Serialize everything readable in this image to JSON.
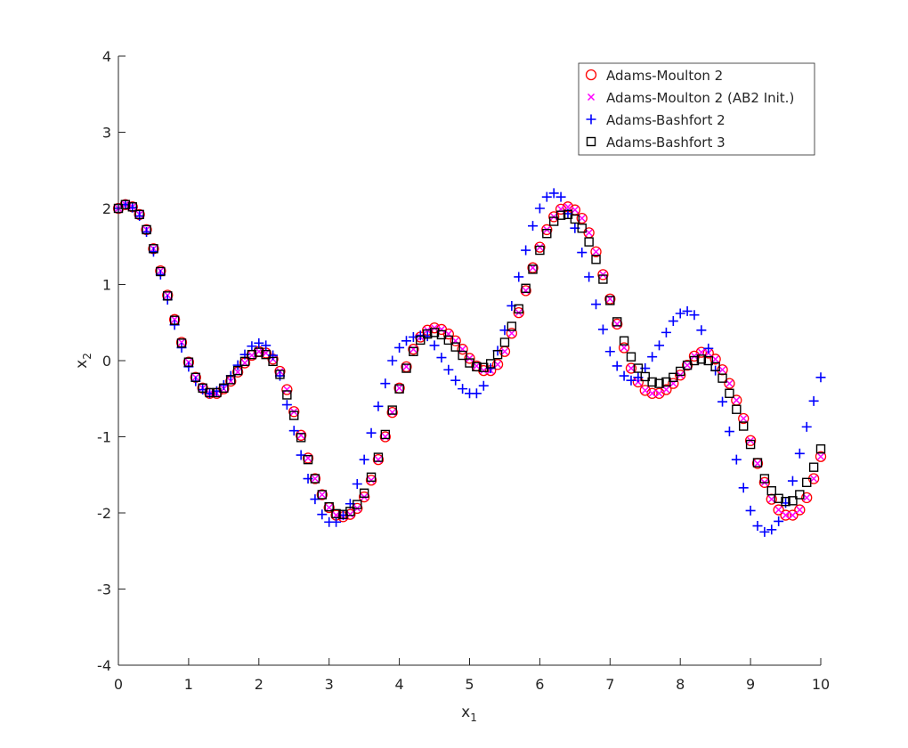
{
  "chart_data": {
    "type": "scatter",
    "title": "",
    "xlabel": "x",
    "xlabel_sub": "1",
    "ylabel": "x",
    "ylabel_sub": "2",
    "xlim": [
      0,
      10
    ],
    "ylim": [
      -4,
      4
    ],
    "xticks": [
      0,
      1,
      2,
      3,
      4,
      5,
      6,
      7,
      8,
      9,
      10
    ],
    "yticks": [
      -4,
      -3,
      -2,
      -1,
      0,
      1,
      2,
      3,
      4
    ],
    "grid": false,
    "legend_position": "top-right",
    "series": [
      {
        "name": "Adams-Moulton 2",
        "marker": "circle",
        "color": "#ff0000",
        "x": [
          0,
          0.1,
          0.2,
          0.3,
          0.4,
          0.5,
          0.6,
          0.7,
          0.8,
          0.9,
          1,
          1.1,
          1.2,
          1.3,
          1.4,
          1.5,
          1.6,
          1.7,
          1.8,
          1.9,
          2,
          2.1,
          2.2,
          2.3,
          2.4,
          2.5,
          2.6,
          2.7,
          2.8,
          2.9,
          3,
          3.1,
          3.2,
          3.3,
          3.4,
          3.5,
          3.6,
          3.7,
          3.8,
          3.9,
          4,
          4.1,
          4.2,
          4.3,
          4.4,
          4.5,
          4.6,
          4.7,
          4.8,
          4.9,
          5,
          5.1,
          5.2,
          5.3,
          5.4,
          5.5,
          5.6,
          5.7,
          5.8,
          5.9,
          6,
          6.1,
          6.2,
          6.3,
          6.4,
          6.5,
          6.6,
          6.7,
          6.8,
          6.9,
          7,
          7.1,
          7.2,
          7.3,
          7.4,
          7.5,
          7.6,
          7.7,
          7.8,
          7.9,
          8,
          8.1,
          8.2,
          8.3,
          8.4,
          8.5,
          8.6,
          8.7,
          8.8,
          8.9,
          9,
          9.1,
          9.2,
          9.3,
          9.4,
          9.5,
          9.6,
          9.7,
          9.8,
          9.9,
          10
        ],
        "y": [
          2,
          2.05,
          2.02,
          1.92,
          1.72,
          1.47,
          1.18,
          0.86,
          0.54,
          0.24,
          -0.02,
          -0.22,
          -0.36,
          -0.43,
          -0.43,
          -0.37,
          -0.27,
          -0.15,
          -0.03,
          0.07,
          0.12,
          0.1,
          0.02,
          -0.14,
          -0.38,
          -0.67,
          -0.98,
          -1.28,
          -1.55,
          -1.76,
          -1.93,
          -2.03,
          -2.05,
          -2.02,
          -1.94,
          -1.79,
          -1.57,
          -1.3,
          -1,
          -0.68,
          -0.36,
          -0.08,
          0.15,
          0.31,
          0.4,
          0.43,
          0.41,
          0.35,
          0.26,
          0.15,
          0.03,
          -0.07,
          -0.13,
          -0.13,
          -0.05,
          0.12,
          0.36,
          0.63,
          0.92,
          1.22,
          1.49,
          1.72,
          1.89,
          1.99,
          2.02,
          1.98,
          1.87,
          1.68,
          1.43,
          1.13,
          0.81,
          0.48,
          0.17,
          -0.1,
          -0.28,
          -0.39,
          -0.43,
          -0.43,
          -0.38,
          -0.3,
          -0.19,
          -0.06,
          0.06,
          0.11,
          0.1,
          0.02,
          -0.12,
          -0.3,
          -0.52,
          -0.76,
          -1.05,
          -1.35,
          -1.6,
          -1.82,
          -1.96,
          -2.03,
          -2.03,
          -1.96,
          -1.8,
          -1.55,
          -1.26
        ]
      },
      {
        "name": "Adams-Moulton 2 (AB2 Init.)",
        "marker": "x",
        "color": "#ff00ff",
        "x": [
          0,
          0.1,
          0.2,
          0.3,
          0.4,
          0.5,
          0.6,
          0.7,
          0.8,
          0.9,
          1,
          1.1,
          1.2,
          1.3,
          1.4,
          1.5,
          1.6,
          1.7,
          1.8,
          1.9,
          2,
          2.1,
          2.2,
          2.3,
          2.4,
          2.5,
          2.6,
          2.7,
          2.8,
          2.9,
          3,
          3.1,
          3.2,
          3.3,
          3.4,
          3.5,
          3.6,
          3.7,
          3.8,
          3.9,
          4,
          4.1,
          4.2,
          4.3,
          4.4,
          4.5,
          4.6,
          4.7,
          4.8,
          4.9,
          5,
          5.1,
          5.2,
          5.3,
          5.4,
          5.5,
          5.6,
          5.7,
          5.8,
          5.9,
          6,
          6.1,
          6.2,
          6.3,
          6.4,
          6.5,
          6.6,
          6.7,
          6.8,
          6.9,
          7,
          7.1,
          7.2,
          7.3,
          7.4,
          7.5,
          7.6,
          7.7,
          7.8,
          7.9,
          8,
          8.1,
          8.2,
          8.3,
          8.4,
          8.5,
          8.6,
          8.7,
          8.8,
          8.9,
          9,
          9.1,
          9.2,
          9.3,
          9.4,
          9.5,
          9.6,
          9.7,
          9.8,
          9.9,
          10
        ],
        "y": [
          2,
          2.05,
          2.02,
          1.92,
          1.72,
          1.47,
          1.18,
          0.86,
          0.54,
          0.24,
          -0.02,
          -0.22,
          -0.36,
          -0.43,
          -0.43,
          -0.37,
          -0.27,
          -0.15,
          -0.03,
          0.07,
          0.12,
          0.1,
          0.02,
          -0.14,
          -0.38,
          -0.67,
          -0.98,
          -1.28,
          -1.55,
          -1.76,
          -1.93,
          -2.03,
          -2.05,
          -2.02,
          -1.94,
          -1.79,
          -1.57,
          -1.3,
          -1,
          -0.68,
          -0.36,
          -0.08,
          0.15,
          0.31,
          0.4,
          0.43,
          0.41,
          0.35,
          0.26,
          0.15,
          0.03,
          -0.07,
          -0.13,
          -0.13,
          -0.05,
          0.12,
          0.36,
          0.63,
          0.92,
          1.22,
          1.49,
          1.72,
          1.89,
          1.99,
          2.02,
          1.98,
          1.87,
          1.68,
          1.43,
          1.13,
          0.81,
          0.48,
          0.17,
          -0.1,
          -0.28,
          -0.39,
          -0.43,
          -0.43,
          -0.38,
          -0.3,
          -0.19,
          -0.06,
          0.06,
          0.11,
          0.1,
          0.02,
          -0.12,
          -0.3,
          -0.52,
          -0.76,
          -1.05,
          -1.35,
          -1.6,
          -1.82,
          -1.96,
          -2.03,
          -2.03,
          -1.96,
          -1.8,
          -1.55,
          -1.26
        ]
      },
      {
        "name": "Adams-Bashfort 2",
        "marker": "plus",
        "color": "#0000ff",
        "x": [
          0,
          0.1,
          0.2,
          0.3,
          0.4,
          0.5,
          0.6,
          0.7,
          0.8,
          0.9,
          1,
          1.1,
          1.2,
          1.3,
          1.4,
          1.5,
          1.6,
          1.7,
          1.8,
          1.9,
          2,
          2.1,
          2.2,
          2.3,
          2.4,
          2.5,
          2.6,
          2.7,
          2.8,
          2.9,
          3,
          3.1,
          3.2,
          3.3,
          3.4,
          3.5,
          3.6,
          3.7,
          3.8,
          3.9,
          4,
          4.1,
          4.2,
          4.3,
          4.4,
          4.5,
          4.6,
          4.7,
          4.8,
          4.9,
          5,
          5.1,
          5.2,
          5.3,
          5.4,
          5.5,
          5.6,
          5.7,
          5.8,
          5.9,
          6,
          6.1,
          6.2,
          6.3,
          6.4,
          6.5,
          6.6,
          6.7,
          6.8,
          6.9,
          7,
          7.1,
          7.2,
          7.3,
          7.4,
          7.5,
          7.6,
          7.7,
          7.8,
          7.9,
          8,
          8.1,
          8.2,
          8.3,
          8.4,
          8.5,
          8.6,
          8.7,
          8.8,
          8.9,
          9,
          9.1,
          9.2,
          9.3,
          9.4,
          9.5,
          9.6,
          9.7,
          9.8,
          9.9,
          10
        ],
        "y": [
          2,
          2.05,
          2.01,
          1.9,
          1.69,
          1.43,
          1.13,
          0.8,
          0.47,
          0.17,
          -0.08,
          -0.27,
          -0.38,
          -0.43,
          -0.4,
          -0.32,
          -0.2,
          -0.06,
          0.08,
          0.19,
          0.23,
          0.2,
          0.07,
          -0.2,
          -0.58,
          -0.92,
          -1.24,
          -1.55,
          -1.82,
          -2.02,
          -2.12,
          -2.12,
          -2.03,
          -1.88,
          -1.62,
          -1.3,
          -0.95,
          -0.6,
          -0.3,
          0,
          0.17,
          0.26,
          0.31,
          0.33,
          0.32,
          0.2,
          0.04,
          -0.12,
          -0.26,
          -0.37,
          -0.43,
          -0.43,
          -0.33,
          -0.1,
          0.13,
          0.4,
          0.72,
          1.1,
          1.45,
          1.77,
          2,
          2.15,
          2.2,
          2.15,
          1.93,
          1.74,
          1.42,
          1.1,
          0.74,
          0.41,
          0.12,
          -0.07,
          -0.2,
          -0.26,
          -0.22,
          -0.1,
          0.05,
          0.2,
          0.37,
          0.52,
          0.62,
          0.65,
          0.6,
          0.4,
          0.16,
          -0.13,
          -0.54,
          -0.93,
          -1.3,
          -1.67,
          -1.97,
          -2.17,
          -2.25,
          -2.22,
          -2.11,
          -1.87,
          -1.58,
          -1.22,
          -0.87,
          -0.53,
          -0.22
        ]
      },
      {
        "name": "Adams-Bashfort 3",
        "marker": "square",
        "color": "#000000",
        "x": [
          0,
          0.1,
          0.2,
          0.3,
          0.4,
          0.5,
          0.6,
          0.7,
          0.8,
          0.9,
          1,
          1.1,
          1.2,
          1.3,
          1.4,
          1.5,
          1.6,
          1.7,
          1.8,
          1.9,
          2,
          2.1,
          2.2,
          2.3,
          2.4,
          2.5,
          2.6,
          2.7,
          2.8,
          2.9,
          3,
          3.1,
          3.2,
          3.3,
          3.4,
          3.5,
          3.6,
          3.7,
          3.8,
          3.9,
          4,
          4.1,
          4.2,
          4.3,
          4.4,
          4.5,
          4.6,
          4.7,
          4.8,
          4.9,
          5,
          5.1,
          5.2,
          5.3,
          5.4,
          5.5,
          5.6,
          5.7,
          5.8,
          5.9,
          6,
          6.1,
          6.2,
          6.3,
          6.4,
          6.5,
          6.6,
          6.7,
          6.8,
          6.9,
          7,
          7.1,
          7.2,
          7.3,
          7.4,
          7.5,
          7.6,
          7.7,
          7.8,
          7.9,
          8,
          8.1,
          8.2,
          8.3,
          8.4,
          8.5,
          8.6,
          8.7,
          8.8,
          8.9,
          9,
          9.1,
          9.2,
          9.3,
          9.4,
          9.5,
          9.6,
          9.7,
          9.8,
          9.9,
          10
        ],
        "y": [
          2,
          2.05,
          2.02,
          1.92,
          1.72,
          1.47,
          1.17,
          0.85,
          0.53,
          0.23,
          -0.02,
          -0.22,
          -0.36,
          -0.42,
          -0.42,
          -0.36,
          -0.25,
          -0.13,
          -0.01,
          0.08,
          0.11,
          0.08,
          -0.01,
          -0.18,
          -0.45,
          -0.72,
          -1.01,
          -1.3,
          -1.55,
          -1.76,
          -1.92,
          -2.01,
          -2.02,
          -1.98,
          -1.89,
          -1.74,
          -1.53,
          -1.27,
          -0.97,
          -0.65,
          -0.37,
          -0.1,
          0.12,
          0.27,
          0.35,
          0.37,
          0.34,
          0.27,
          0.18,
          0.07,
          -0.03,
          -0.08,
          -0.09,
          -0.04,
          0.08,
          0.24,
          0.45,
          0.68,
          0.95,
          1.2,
          1.45,
          1.67,
          1.83,
          1.91,
          1.92,
          1.86,
          1.74,
          1.56,
          1.33,
          1.07,
          0.79,
          0.51,
          0.26,
          0.05,
          -0.1,
          -0.21,
          -0.28,
          -0.3,
          -0.28,
          -0.22,
          -0.14,
          -0.06,
          0,
          0.02,
          0,
          -0.08,
          -0.23,
          -0.43,
          -0.64,
          -0.86,
          -1.1,
          -1.34,
          -1.55,
          -1.71,
          -1.81,
          -1.85,
          -1.84,
          -1.76,
          -1.6,
          -1.4,
          -1.16
        ]
      }
    ]
  }
}
